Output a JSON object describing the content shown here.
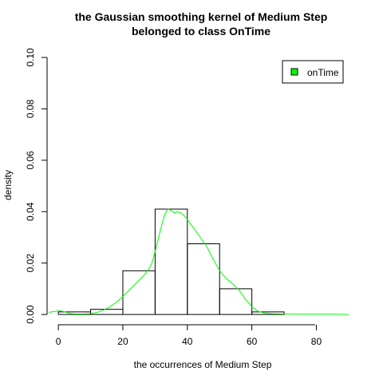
{
  "chart_data": {
    "type": "histogram",
    "title_lines": [
      "the Gaussian smoothing kernel of Medium Step",
      "belonged to class OnTime"
    ],
    "xlabel": "the occurrences of Medium Step",
    "ylabel": "density",
    "xlim": [
      -3.5,
      92.5
    ],
    "ylim": [
      -0.004,
      0.1
    ],
    "x_ticks": [
      0,
      20,
      40,
      60,
      80
    ],
    "y_ticks": [
      0.0,
      0.02,
      0.04,
      0.06,
      0.08,
      0.1
    ],
    "y_tick_labels": [
      "0.00",
      "0.02",
      "0.04",
      "0.06",
      "0.08",
      "0.10"
    ],
    "grid": false,
    "legend_position": "top-right",
    "bins": [
      {
        "x0": 0,
        "x1": 10,
        "density": 0.001
      },
      {
        "x0": 10,
        "x1": 20,
        "density": 0.002
      },
      {
        "x0": 20,
        "x1": 30,
        "density": 0.017
      },
      {
        "x0": 30,
        "x1": 40,
        "density": 0.041
      },
      {
        "x0": 40,
        "x1": 50,
        "density": 0.0275
      },
      {
        "x0": 50,
        "x1": 60,
        "density": 0.01
      },
      {
        "x0": 60,
        "x1": 70,
        "density": 0.001
      }
    ],
    "bin_style": {
      "fill": "none",
      "stroke": "#000000"
    },
    "series": [
      {
        "name": "onTime",
        "color": "#00ff00",
        "points": [
          [
            -3,
            0.0008
          ],
          [
            -1,
            0.0012
          ],
          [
            0,
            0.0014
          ],
          [
            1,
            0.0013
          ],
          [
            2,
            0.001
          ],
          [
            3,
            0.0006
          ],
          [
            4,
            0.0003
          ],
          [
            5,
            0.0002
          ],
          [
            6,
            0.0002
          ],
          [
            8,
            0.0002
          ],
          [
            10,
            0.0003
          ],
          [
            12,
            0.0008
          ],
          [
            14,
            0.0017
          ],
          [
            16,
            0.003
          ],
          [
            18,
            0.0048
          ],
          [
            20,
            0.007
          ],
          [
            22,
            0.0095
          ],
          [
            24,
            0.012
          ],
          [
            26,
            0.0145
          ],
          [
            28,
            0.0175
          ],
          [
            29,
            0.02
          ],
          [
            30,
            0.0245
          ],
          [
            31,
            0.0295
          ],
          [
            32,
            0.0345
          ],
          [
            33,
            0.039
          ],
          [
            34,
            0.041
          ],
          [
            35,
            0.0405
          ],
          [
            36,
            0.0395
          ],
          [
            37,
            0.04
          ],
          [
            38,
            0.0395
          ],
          [
            39,
            0.0385
          ],
          [
            40,
            0.037
          ],
          [
            42,
            0.0335
          ],
          [
            44,
            0.03
          ],
          [
            46,
            0.0265
          ],
          [
            48,
            0.0215
          ],
          [
            50,
            0.017
          ],
          [
            52,
            0.014
          ],
          [
            54,
            0.012
          ],
          [
            56,
            0.0095
          ],
          [
            58,
            0.006
          ],
          [
            60,
            0.003
          ],
          [
            62,
            0.0012
          ],
          [
            64,
            0.0005
          ],
          [
            66,
            0.0003
          ],
          [
            70,
            0.0002
          ],
          [
            75,
            0.0001
          ],
          [
            80,
            0.0001
          ],
          [
            85,
            0.0001
          ],
          [
            90,
            0.0
          ]
        ]
      }
    ]
  }
}
